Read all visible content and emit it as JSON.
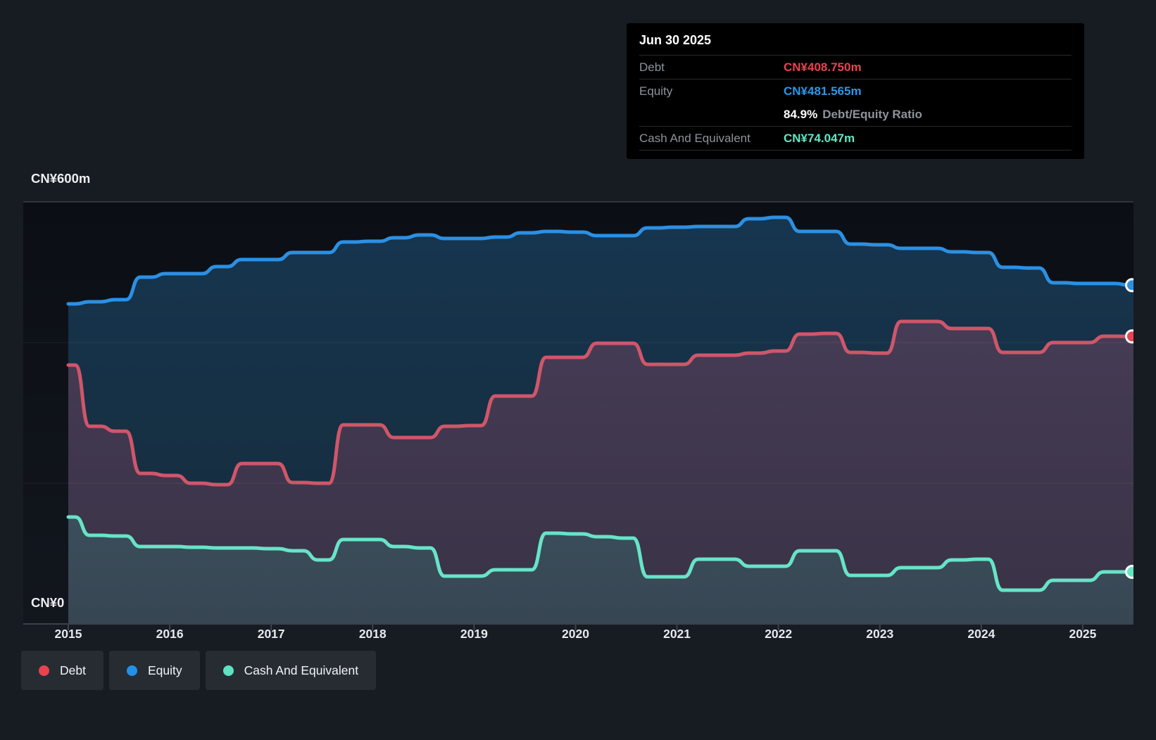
{
  "tooltip": {
    "date": "Jun 30 2025",
    "debt_label": "Debt",
    "debt_value": "CN¥408.750m",
    "equity_label": "Equity",
    "equity_value": "CN¥481.565m",
    "ratio_value": "84.9%",
    "ratio_label": "Debt/Equity Ratio",
    "cash_label": "Cash And Equivalent",
    "cash_value": "CN¥74.047m"
  },
  "legend": {
    "debt": "Debt",
    "equity": "Equity",
    "cash": "Cash And Equivalent"
  },
  "colors": {
    "debt_line": "#d0566a",
    "equity_line": "#2b90e4",
    "cash_line": "#67e4c8",
    "debt_dot": "#e8434f",
    "equity_dot": "#2191e8",
    "cash_dot": "#5ee3c2",
    "marker_debt": "#e8434f",
    "marker_equity": "#2b90e4",
    "marker_cash": "#63e6c3"
  },
  "chart_data": {
    "type": "area",
    "title": "Debt to Equity History",
    "unit": "CN¥m",
    "ylim": [
      0,
      600
    ],
    "y_axis_top_label": "CN¥600m",
    "y_axis_bottom_label": "CN¥0",
    "x_tick_labels": [
      "2015",
      "2016",
      "2017",
      "2018",
      "2019",
      "2020",
      "2021",
      "2022",
      "2023",
      "2024",
      "2025"
    ],
    "grid": "horizontal-faint",
    "legend_position": "bottom-left",
    "quarters": [
      "2014-12-31",
      "2015-03-31",
      "2015-06-30",
      "2015-09-30",
      "2015-12-31",
      "2016-03-31",
      "2016-06-30",
      "2016-09-30",
      "2016-12-31",
      "2017-03-31",
      "2017-06-30",
      "2017-09-30",
      "2017-12-31",
      "2018-03-31",
      "2018-06-30",
      "2018-09-30",
      "2018-12-31",
      "2019-03-31",
      "2019-06-30",
      "2019-09-30",
      "2019-12-31",
      "2020-03-31",
      "2020-06-30",
      "2020-09-30",
      "2020-12-31",
      "2021-03-31",
      "2021-06-30",
      "2021-09-30",
      "2021-12-31",
      "2022-03-31",
      "2022-06-30",
      "2022-09-30",
      "2022-12-31",
      "2023-03-31",
      "2023-06-30",
      "2023-09-30",
      "2023-12-31",
      "2024-03-31",
      "2024-06-30",
      "2024-09-30",
      "2024-12-31",
      "2025-03-31",
      "2025-06-30"
    ],
    "series": [
      {
        "name": "Equity",
        "color": "#2b90e4",
        "values": [
          455,
          458,
          461,
          493,
          498,
          498,
          508,
          518,
          518,
          528,
          528,
          543,
          544,
          549,
          553,
          548,
          548,
          550,
          556,
          558,
          557,
          552,
          552,
          563,
          564,
          565,
          565,
          576,
          578,
          558,
          558,
          540,
          539,
          534,
          534,
          529,
          528,
          507,
          506,
          485,
          484,
          484,
          481.565
        ]
      },
      {
        "name": "Debt",
        "color": "#d0566a",
        "values": [
          368,
          281,
          274,
          214,
          211,
          200,
          198,
          228,
          228,
          201,
          200,
          283,
          283,
          265,
          265,
          281,
          282,
          324,
          324,
          379,
          379,
          399,
          399,
          369,
          369,
          382,
          382,
          385,
          388,
          412,
          413,
          386,
          385,
          430,
          430,
          420,
          420,
          386,
          386,
          400,
          400,
          409,
          408.75
        ]
      },
      {
        "name": "Cash And Equivalent",
        "color": "#67e4c8",
        "values": [
          152,
          126,
          125,
          110,
          110,
          109,
          108,
          108,
          107,
          104,
          91,
          120,
          120,
          110,
          108,
          68,
          68,
          77,
          77,
          129,
          128,
          124,
          122,
          67,
          67,
          92,
          92,
          82,
          82,
          104,
          104,
          69,
          69,
          80,
          80,
          91,
          92,
          48,
          48,
          62,
          62,
          74,
          74.047
        ]
      }
    ],
    "final_values": {
      "Debt": 408.75,
      "Equity": 481.565,
      "Cash And Equivalent": 74.047
    }
  }
}
